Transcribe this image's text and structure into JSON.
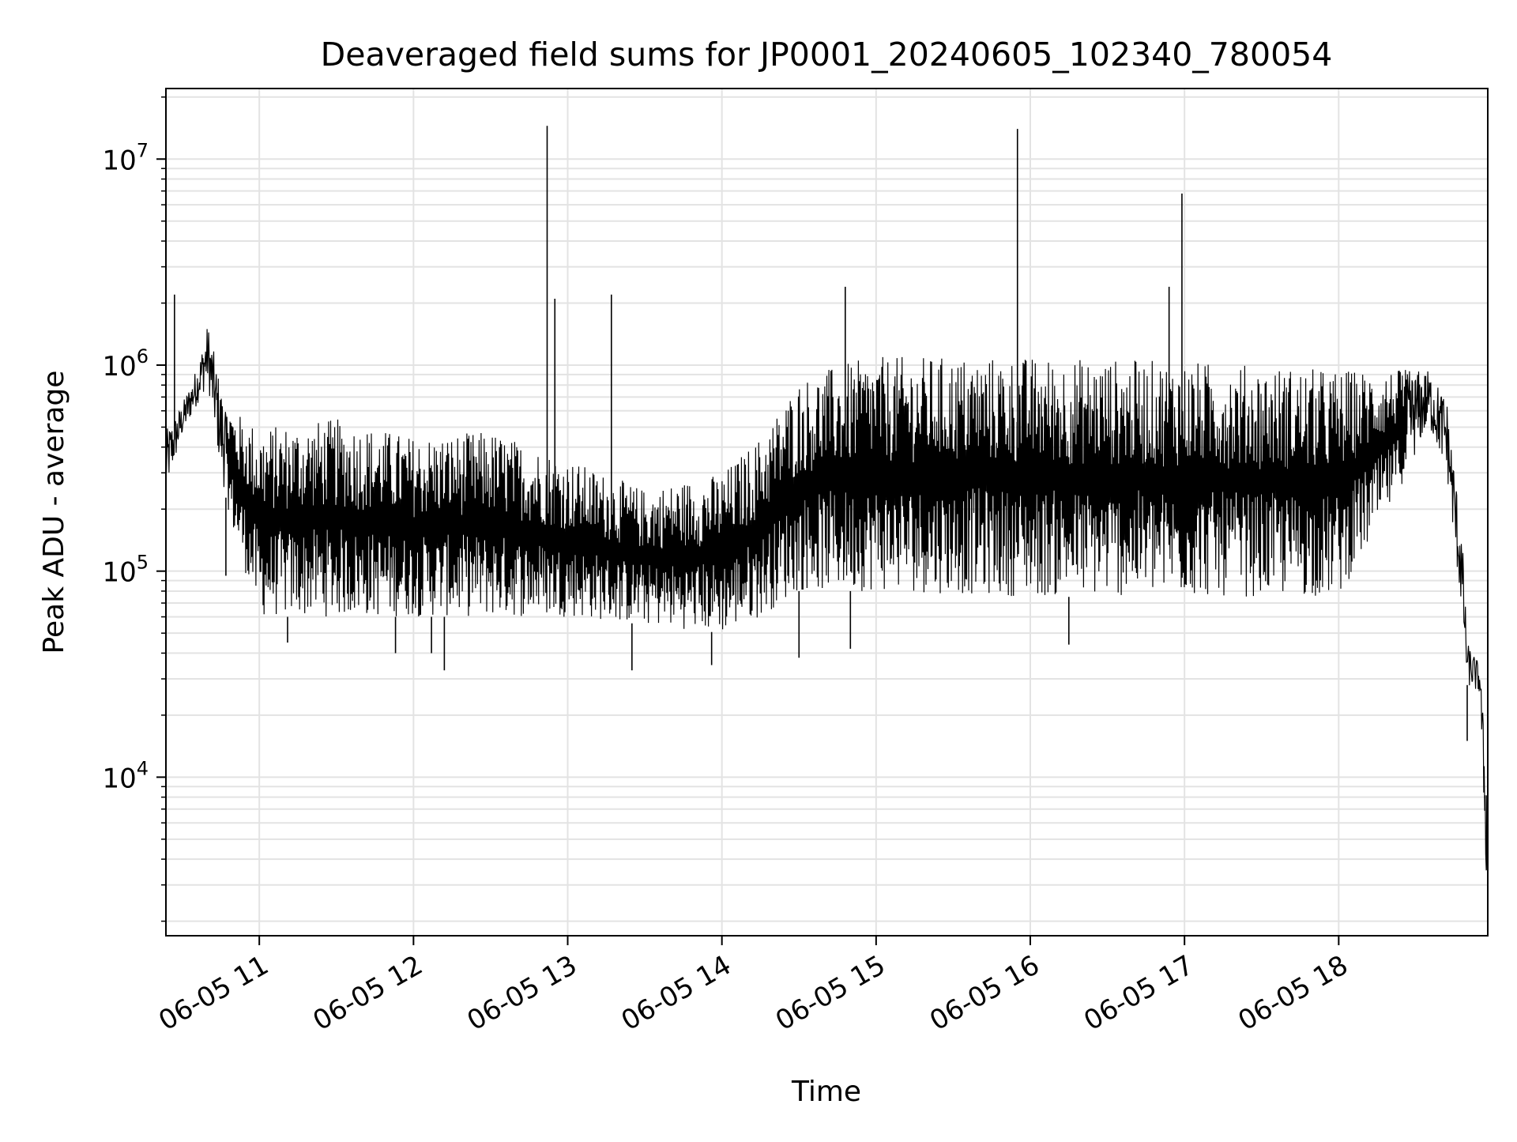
{
  "chart_data": {
    "type": "line",
    "title": "Deaveraged field sums for JP0001_20240605_102340_780054",
    "xlabel": "Time",
    "ylabel": "Peak ADU - average",
    "yscale": "log",
    "xlim": [
      "2024-06-05 10:23:40",
      "2024-06-05 18:58:00"
    ],
    "ylim": [
      1700,
      22000000
    ],
    "grid": true,
    "x_ticks": [
      {
        "value": "2024-06-05 11:00",
        "label": "06-05 11"
      },
      {
        "value": "2024-06-05 12:00",
        "label": "06-05 12"
      },
      {
        "value": "2024-06-05 13:00",
        "label": "06-05 13"
      },
      {
        "value": "2024-06-05 14:00",
        "label": "06-05 14"
      },
      {
        "value": "2024-06-05 15:00",
        "label": "06-05 15"
      },
      {
        "value": "2024-06-05 16:00",
        "label": "06-05 16"
      },
      {
        "value": "2024-06-05 17:00",
        "label": "06-05 17"
      },
      {
        "value": "2024-06-05 18:00",
        "label": "06-05 18"
      }
    ],
    "y_ticks": [
      {
        "value": 10000,
        "base": "10",
        "exp": "4"
      },
      {
        "value": 100000,
        "base": "10",
        "exp": "5"
      },
      {
        "value": 1000000,
        "base": "10",
        "exp": "6"
      },
      {
        "value": 10000000,
        "base": "10",
        "exp": "7"
      }
    ],
    "series": [
      {
        "color": "#000000",
        "envelope": [
          {
            "t": "10:23:40",
            "low": 240000,
            "high": 480000
          },
          {
            "t": "10:30",
            "low": 450000,
            "high": 650000
          },
          {
            "t": "10:36",
            "low": 650000,
            "high": 1000000
          },
          {
            "t": "10:40",
            "low": 800000,
            "high": 1600000
          },
          {
            "t": "10:45",
            "low": 300000,
            "high": 800000
          },
          {
            "t": "10:50",
            "low": 150000,
            "high": 600000
          },
          {
            "t": "11:00",
            "low": 60000,
            "high": 500000
          },
          {
            "t": "11:30",
            "low": 60000,
            "high": 550000
          },
          {
            "t": "12:00",
            "low": 60000,
            "high": 450000
          },
          {
            "t": "12:30",
            "low": 60000,
            "high": 480000
          },
          {
            "t": "13:00",
            "low": 60000,
            "high": 350000
          },
          {
            "t": "13:30",
            "low": 55000,
            "high": 250000
          },
          {
            "t": "14:00",
            "low": 50000,
            "high": 300000
          },
          {
            "t": "14:15",
            "low": 60000,
            "high": 450000
          },
          {
            "t": "14:30",
            "low": 80000,
            "high": 850000
          },
          {
            "t": "14:45",
            "low": 80000,
            "high": 1000000
          },
          {
            "t": "15:00",
            "low": 80000,
            "high": 1100000
          },
          {
            "t": "16:00",
            "low": 75000,
            "high": 1100000
          },
          {
            "t": "17:00",
            "low": 75000,
            "high": 1050000
          },
          {
            "t": "18:00",
            "low": 75000,
            "high": 950000
          },
          {
            "t": "18:20",
            "low": 200000,
            "high": 950000
          },
          {
            "t": "18:35",
            "low": 500000,
            "high": 950000
          },
          {
            "t": "18:42",
            "low": 300000,
            "high": 700000
          },
          {
            "t": "18:48",
            "low": 60000,
            "high": 150000
          },
          {
            "t": "18:50",
            "low": 28000,
            "high": 45000
          },
          {
            "t": "18:55",
            "low": 25000,
            "high": 35000
          },
          {
            "t": "18:58",
            "low": 2000,
            "high": 8000
          }
        ],
        "spikes": [
          {
            "t": "10:27",
            "value": 2200000
          },
          {
            "t": "12:52",
            "value": 14500000
          },
          {
            "t": "12:55",
            "value": 2100000
          },
          {
            "t": "13:17",
            "value": 2200000
          },
          {
            "t": "14:48",
            "value": 2400000
          },
          {
            "t": "15:55",
            "value": 14000000
          },
          {
            "t": "16:54",
            "value": 2400000
          },
          {
            "t": "16:59",
            "value": 6800000
          },
          {
            "t": "18:44",
            "value": 280000
          }
        ],
        "dips": [
          {
            "t": "10:47",
            "value": 95000
          },
          {
            "t": "11:11",
            "value": 45000
          },
          {
            "t": "11:53",
            "value": 40000
          },
          {
            "t": "12:07",
            "value": 40000
          },
          {
            "t": "12:12",
            "value": 33000
          },
          {
            "t": "13:25",
            "value": 33000
          },
          {
            "t": "13:56",
            "value": 35000
          },
          {
            "t": "14:30",
            "value": 38000
          },
          {
            "t": "14:50",
            "value": 42000
          },
          {
            "t": "16:15",
            "value": 44000
          },
          {
            "t": "18:50",
            "value": 15000
          }
        ]
      }
    ]
  }
}
